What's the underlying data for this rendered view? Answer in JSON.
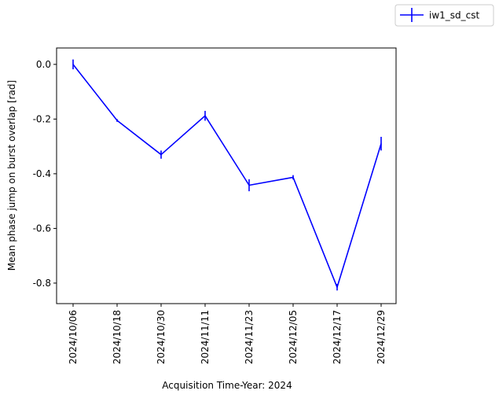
{
  "chart_data": {
    "type": "line",
    "x_tick_labels": [
      "2024/10/06",
      "2024/10/18",
      "2024/10/30",
      "2024/11/11",
      "2024/11/23",
      "2024/12/05",
      "2024/12/17",
      "2024/12/29"
    ],
    "y_tick_labels": [
      "0.0",
      "-0.2",
      "-0.4",
      "-0.6",
      "-0.8"
    ],
    "y_ticks": [
      0.0,
      -0.2,
      -0.4,
      -0.6,
      -0.8
    ],
    "xlabel": "Acquisition Time-Year: 2024",
    "ylabel": "Mean phase jump on burst overlap [rad]",
    "ylim": [
      -0.875,
      0.06
    ],
    "series": [
      {
        "name": "iw1_sd_cst",
        "color": "#0000ff",
        "x": [
          "2024/10/06",
          "2024/10/18",
          "2024/10/30",
          "2024/11/11",
          "2024/11/23",
          "2024/12/05",
          "2024/12/17",
          "2024/12/29"
        ],
        "values": [
          0.0,
          -0.205,
          -0.33,
          -0.188,
          -0.442,
          -0.413,
          -0.815,
          -0.29
        ],
        "errors": [
          0.018,
          0.005,
          0.015,
          0.018,
          0.022,
          0.008,
          0.012,
          0.025
        ]
      }
    ],
    "legend": "top-right",
    "grid": false
  }
}
